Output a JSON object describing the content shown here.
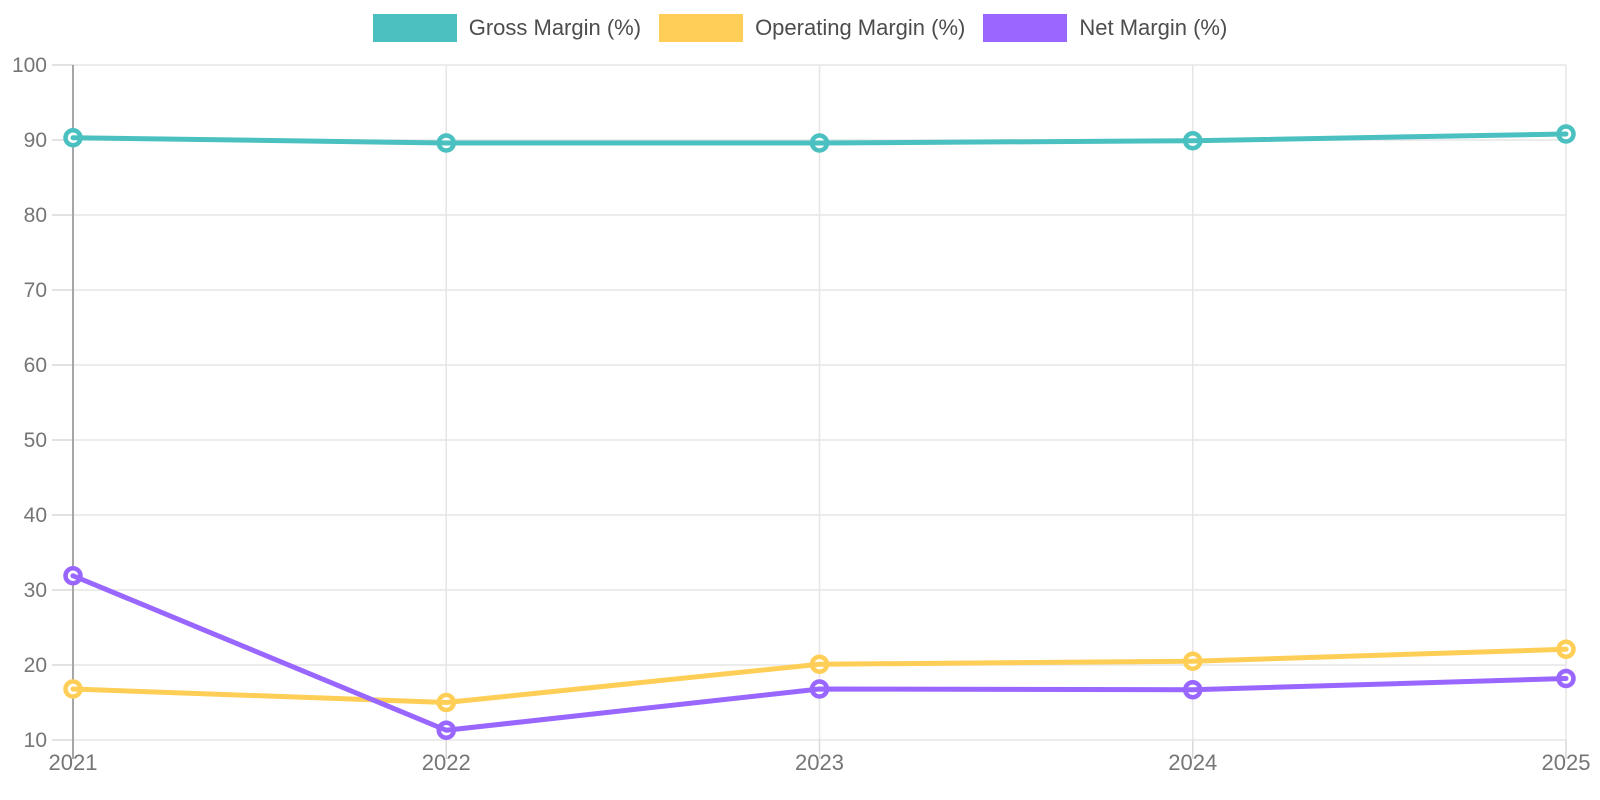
{
  "chart_data": {
    "type": "line",
    "x": [
      "2021",
      "2022",
      "2023",
      "2024",
      "2025"
    ],
    "series": [
      {
        "name": "Gross Margin (%)",
        "color": "#4BC0C0",
        "values": [
          90.3,
          89.6,
          89.6,
          89.9,
          90.8
        ]
      },
      {
        "name": "Operating Margin (%)",
        "color": "#FFCE56",
        "values": [
          16.8,
          15.0,
          20.1,
          20.5,
          22.1
        ]
      },
      {
        "name": "Net Margin (%)",
        "color": "#9966FF",
        "values": [
          31.9,
          11.3,
          16.8,
          16.7,
          18.2
        ]
      }
    ],
    "title": "",
    "xlabel": "",
    "ylabel": "",
    "ylim": [
      10,
      100
    ],
    "yticks": [
      10,
      20,
      30,
      40,
      50,
      60,
      70,
      80,
      90,
      100
    ],
    "legend_position": "top-center",
    "grid": true,
    "grid_color": "#e6e6e6",
    "axis_color": "#a6a6a6",
    "tick_label_color": "#757575",
    "marker_fill": "#ffffff"
  }
}
